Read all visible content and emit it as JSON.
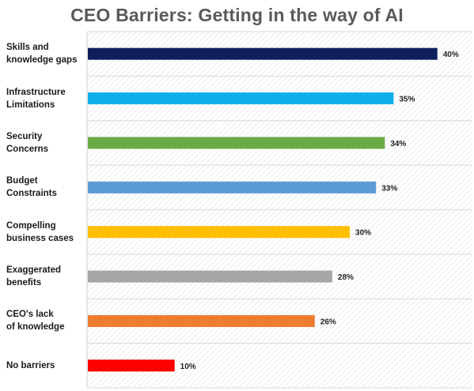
{
  "chart_data": {
    "type": "bar",
    "orientation": "horizontal",
    "title": "CEO Barriers: Getting in the way of AI",
    "categories": [
      [
        "Skills and",
        "knowledge gaps"
      ],
      [
        "Infrastructure",
        "Limitations"
      ],
      [
        "Security",
        "Concerns"
      ],
      [
        "Budget",
        "Constraints"
      ],
      [
        "Compelling",
        "business cases"
      ],
      [
        "Exaggerated",
        "benefits"
      ],
      [
        "CEO's lack",
        "of knowledge"
      ],
      [
        "No barriers"
      ]
    ],
    "values": [
      40,
      35,
      34,
      33,
      30,
      28,
      26,
      10
    ],
    "value_labels": [
      "40%",
      "35%",
      "34%",
      "33%",
      "30%",
      "28%",
      "26%",
      "10%"
    ],
    "colors": [
      "#0f1f5c",
      "#0fb0ea",
      "#6aab47",
      "#5b9bd5",
      "#ffc000",
      "#a6a6a6",
      "#ed7d31",
      "#ff0000"
    ],
    "xlim": [
      0,
      44
    ],
    "grid": true,
    "legend": "none"
  }
}
